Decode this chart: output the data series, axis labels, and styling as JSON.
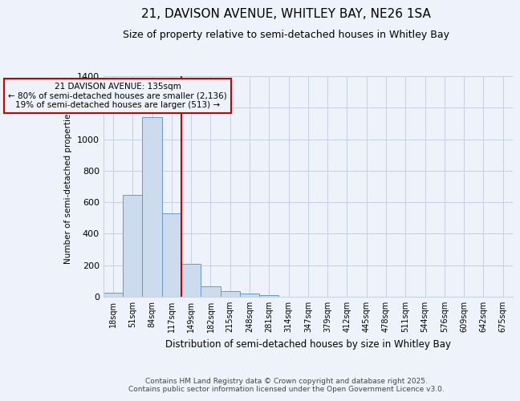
{
  "title1": "21, DAVISON AVENUE, WHITLEY BAY, NE26 1SA",
  "title2": "Size of property relative to semi-detached houses in Whitley Bay",
  "xlabel": "Distribution of semi-detached houses by size in Whitley Bay",
  "ylabel": "Number of semi-detached properties",
  "categories": [
    "18sqm",
    "51sqm",
    "84sqm",
    "117sqm",
    "149sqm",
    "182sqm",
    "215sqm",
    "248sqm",
    "281sqm",
    "314sqm",
    "347sqm",
    "379sqm",
    "412sqm",
    "445sqm",
    "478sqm",
    "511sqm",
    "544sqm",
    "576sqm",
    "609sqm",
    "642sqm",
    "675sqm"
  ],
  "values": [
    25,
    645,
    1140,
    530,
    210,
    65,
    35,
    20,
    10,
    0,
    0,
    0,
    0,
    0,
    0,
    0,
    0,
    0,
    0,
    0,
    0
  ],
  "bar_color": "#ccdcee",
  "bar_edge_color": "#6699cc",
  "vline_position": 3.5,
  "vline_color": "#cc0000",
  "annotation_line1": "21 DAVISON AVENUE: 135sqm",
  "annotation_line2": "← 80% of semi-detached houses are smaller (2,136)",
  "annotation_line3": "19% of semi-detached houses are larger (513) →",
  "annotation_box_color": "#cc0000",
  "ylim": [
    0,
    1400
  ],
  "yticks": [
    0,
    200,
    400,
    600,
    800,
    1000,
    1200,
    1400
  ],
  "footer": "Contains HM Land Registry data © Crown copyright and database right 2025.\nContains public sector information licensed under the Open Government Licence v3.0.",
  "bg_color": "#eef2fa",
  "grid_color": "#c5cfe0",
  "title_fontsize": 11,
  "subtitle_fontsize": 9
}
